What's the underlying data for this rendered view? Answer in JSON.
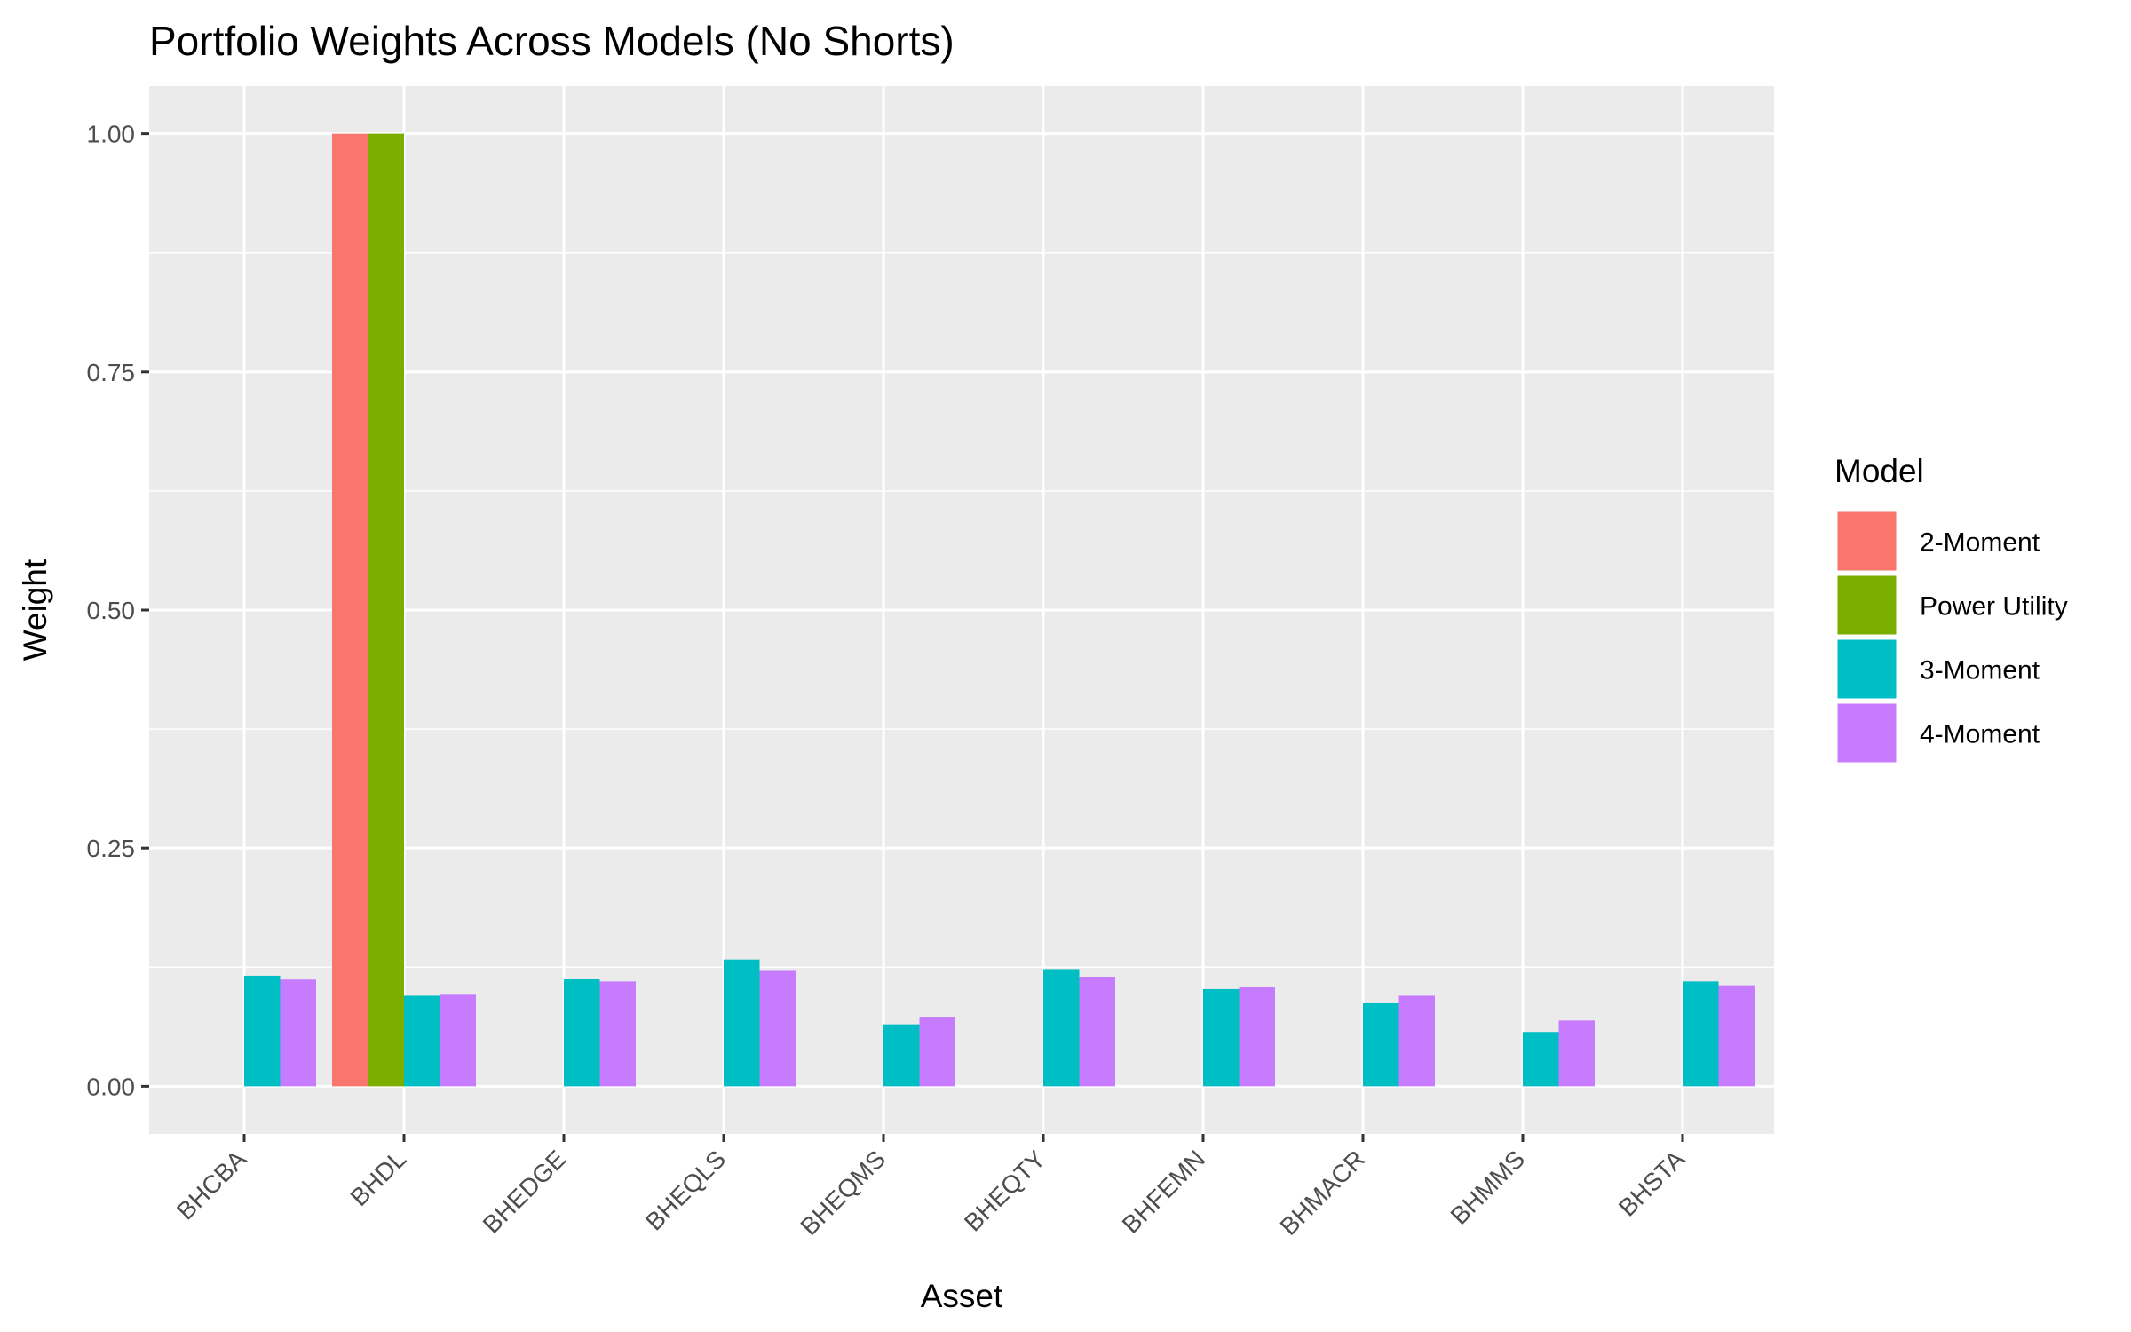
{
  "chart_data": {
    "type": "bar",
    "title": "Portfolio Weights Across Models (No Shorts)",
    "xlabel": "Asset",
    "ylabel": "Weight",
    "ylim": [
      -0.05,
      1.05
    ],
    "yticks": [
      0.0,
      0.25,
      0.5,
      0.75,
      1.0
    ],
    "ytick_labels": [
      "0.00",
      "0.25",
      "0.50",
      "0.75",
      "1.00"
    ],
    "categories": [
      "BHCBA",
      "BHDL",
      "BHEDGE",
      "BHEQLS",
      "BHEQMS",
      "BHEQTY",
      "BHFEMN",
      "BHMACR",
      "BHMMS",
      "BHSTA"
    ],
    "legend": {
      "title": "Model",
      "position": "right"
    },
    "grid": true,
    "series": [
      {
        "name": "2-Moment",
        "color": "#F8766D",
        "values": [
          0,
          1.0,
          0,
          0,
          0,
          0,
          0,
          0,
          0,
          0
        ]
      },
      {
        "name": "Power Utility",
        "color": "#7CAE00",
        "values": [
          0,
          1.0,
          0,
          0,
          0,
          0,
          0,
          0,
          0,
          0
        ]
      },
      {
        "name": "3-Moment",
        "color": "#00BFC4",
        "values": [
          0.116,
          0.095,
          0.113,
          0.133,
          0.065,
          0.123,
          0.102,
          0.088,
          0.057,
          0.11
        ]
      },
      {
        "name": "4-Moment",
        "color": "#C77CFF",
        "values": [
          0.112,
          0.097,
          0.11,
          0.122,
          0.073,
          0.115,
          0.104,
          0.095,
          0.069,
          0.106
        ]
      }
    ]
  }
}
